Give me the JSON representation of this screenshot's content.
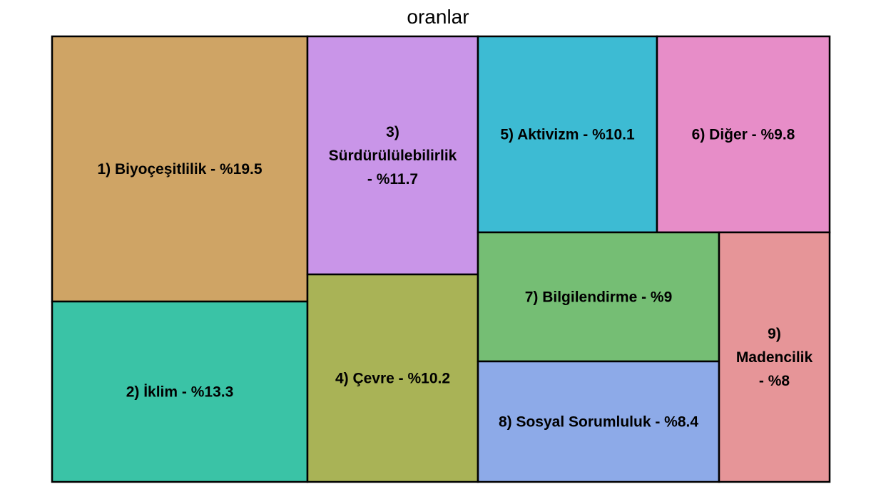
{
  "chart_data": {
    "type": "treemap",
    "title": "oranlar",
    "tiles": [
      {
        "label": "1) Biyoçeşitlilik - %19.5",
        "lines": [
          "1) Biyoçeşitlilik - %19.5"
        ],
        "value": 19.5,
        "color": "#CFA465"
      },
      {
        "label": "2) İklim - %13.3",
        "lines": [
          "2) İklim - %13.3"
        ],
        "value": 13.3,
        "color": "#3AC3A6"
      },
      {
        "label": "3) Sürdürülülebilirlik - %11.7",
        "lines": [
          "3)",
          "Sürdürülülebilirlik",
          "- %11.7"
        ],
        "value": 11.7,
        "color": "#C995E8"
      },
      {
        "label": "4) Çevre - %10.2",
        "lines": [
          "4) Çevre - %10.2"
        ],
        "value": 10.2,
        "color": "#A9B356"
      },
      {
        "label": "5) Aktivizm - %10.1",
        "lines": [
          "5) Aktivizm - %10.1"
        ],
        "value": 10.1,
        "color": "#3DBBD3"
      },
      {
        "label": "6) Diğer - %9.8",
        "lines": [
          "6) Diğer - %9.8"
        ],
        "value": 9.8,
        "color": "#E78DC8"
      },
      {
        "label": "7) Bilgilendirme - %9",
        "lines": [
          "7) Bilgilendirme - %9"
        ],
        "value": 9,
        "color": "#75BE74"
      },
      {
        "label": "8) Sosyal Sorumluluk - %8.4",
        "lines": [
          "8) Sosyal Sorumluluk - %8.4"
        ],
        "value": 8.4,
        "color": "#8DAAE8"
      },
      {
        "label": "9) Madencilik - %8",
        "lines": [
          "9)",
          "Madencilik",
          "- %8"
        ],
        "value": 8,
        "color": "#E69598"
      }
    ]
  }
}
